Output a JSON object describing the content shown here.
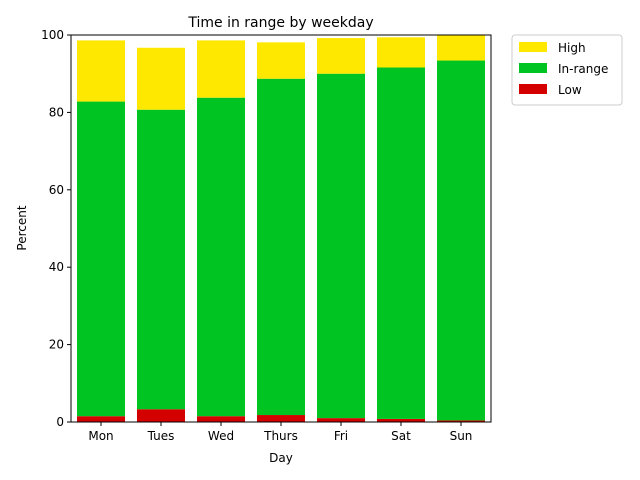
{
  "chart_data": {
    "type": "bar",
    "stacked": true,
    "title": "Time in range by weekday",
    "xlabel": "Day",
    "ylabel": "Percent",
    "categories": [
      "Mon",
      "Tues",
      "Wed",
      "Thurs",
      "Fri",
      "Sat",
      "Sun"
    ],
    "ylim": [
      0,
      100
    ],
    "yticks": [
      0,
      20,
      40,
      60,
      80,
      100
    ],
    "grid": false,
    "legend_position": "outside-top-right",
    "series": [
      {
        "name": "Low",
        "color": "#d40000",
        "values": [
          1.5,
          3.3,
          1.5,
          1.8,
          1.0,
          0.8,
          0.4
        ]
      },
      {
        "name": "In-range",
        "color": "#00c422",
        "values": [
          81.3,
          77.4,
          82.3,
          86.9,
          89.0,
          90.8,
          93.0
        ]
      },
      {
        "name": "High",
        "color": "#ffe800",
        "values": [
          15.8,
          16.0,
          14.8,
          9.4,
          9.2,
          7.8,
          6.7
        ]
      }
    ]
  }
}
